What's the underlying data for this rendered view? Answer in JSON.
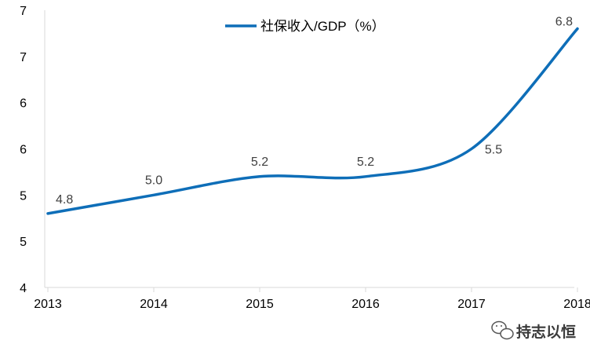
{
  "chart_data": {
    "type": "line",
    "title": "",
    "xlabel": "",
    "ylabel": "",
    "categories": [
      "2013",
      "2014",
      "2015",
      "2016",
      "2017",
      "2018"
    ],
    "series": [
      {
        "name": "社保收入/GDP（%）",
        "values": [
          4.8,
          5.0,
          5.2,
          5.2,
          5.5,
          6.8
        ],
        "data_labels": [
          "4.8",
          "5.0",
          "5.2",
          "5.2",
          "5.5",
          "6.8"
        ],
        "color": "#0e6eb8"
      }
    ],
    "ylim": [
      4,
      7
    ],
    "ytick_labels": [
      "4",
      "5",
      "5",
      "6",
      "6",
      "7",
      "7"
    ],
    "legend": "top-center",
    "grid": false,
    "smooth": true,
    "axis_color": "#d9d9d9"
  },
  "watermark": {
    "text": "持志以恒",
    "icon": "wechat-icon",
    "color": "#3a3a3a"
  }
}
